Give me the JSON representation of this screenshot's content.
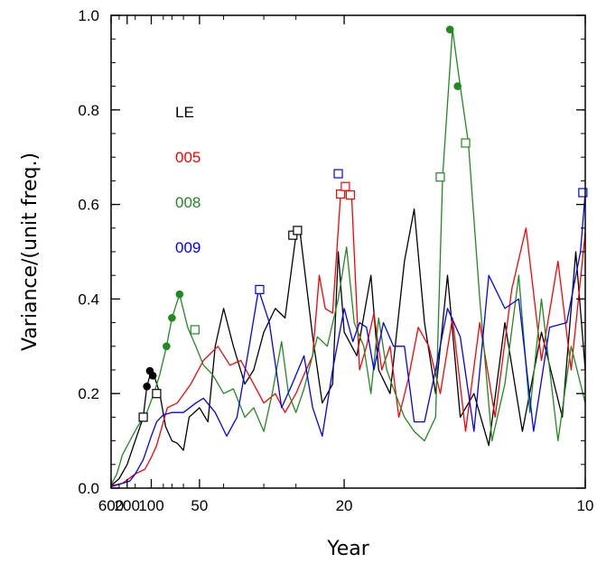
{
  "chart_data": {
    "type": "line",
    "xlabel": "Year",
    "ylabel": "Variance/(unit freq.)",
    "xscale": "reciprocal",
    "xlim": [
      600,
      10
    ],
    "ylim": [
      0,
      1.0
    ],
    "xticks": [
      "600",
      "200",
      "100",
      "50",
      "20",
      "10"
    ],
    "xtick_values": [
      600,
      200,
      100,
      50,
      20,
      10
    ],
    "yticks": [
      "0.0",
      "0.2",
      "0.4",
      "0.6",
      "0.8",
      "1.0"
    ],
    "ytick_values": [
      0,
      0.2,
      0.4,
      0.6,
      0.8,
      1.0
    ],
    "legend": [
      {
        "label": "LE",
        "color": "#000000"
      },
      {
        "label": "005",
        "color": "#ff0000"
      },
      {
        "label": "008",
        "color": "#1f8a1f"
      },
      {
        "label": "009",
        "color": "#0000ff"
      }
    ],
    "series": [
      {
        "name": "LE",
        "color": "#000000",
        "points": [
          [
            600,
            0.005
          ],
          [
            300,
            0.02
          ],
          [
            200,
            0.05
          ],
          [
            150,
            0.1
          ],
          [
            120,
            0.15
          ],
          [
            110,
            0.215
          ],
          [
            100,
            0.248
          ],
          [
            95,
            0.24
          ],
          [
            85,
            0.2
          ],
          [
            77,
            0.13
          ],
          [
            70,
            0.1
          ],
          [
            65,
            0.095
          ],
          [
            60,
            0.08
          ],
          [
            56,
            0.15
          ],
          [
            50,
            0.17
          ],
          [
            46,
            0.14
          ],
          [
            43,
            0.3
          ],
          [
            40,
            0.38
          ],
          [
            37,
            0.3
          ],
          [
            34,
            0.22
          ],
          [
            32,
            0.25
          ],
          [
            30,
            0.33
          ],
          [
            28,
            0.38
          ],
          [
            26.5,
            0.36
          ],
          [
            25,
            0.535
          ],
          [
            24.5,
            0.545
          ],
          [
            23,
            0.32
          ],
          [
            22,
            0.18
          ],
          [
            21,
            0.22
          ],
          [
            20.5,
            0.5
          ],
          [
            20,
            0.33
          ],
          [
            19,
            0.28
          ],
          [
            18,
            0.45
          ],
          [
            17.5,
            0.25
          ],
          [
            16.8,
            0.2
          ],
          [
            16,
            0.48
          ],
          [
            15.5,
            0.59
          ],
          [
            15,
            0.35
          ],
          [
            14.5,
            0.2
          ],
          [
            14,
            0.45
          ],
          [
            13.5,
            0.15
          ],
          [
            13,
            0.2
          ],
          [
            12.5,
            0.09
          ],
          [
            12,
            0.35
          ],
          [
            11.5,
            0.12
          ],
          [
            11,
            0.33
          ],
          [
            10.5,
            0.15
          ],
          [
            10.2,
            0.5
          ],
          [
            10,
            0.25
          ]
        ],
        "markers": [
          [
            120,
            0.15,
            "square"
          ],
          [
            110,
            0.215,
            "dot"
          ],
          [
            103,
            0.248,
            "dot"
          ],
          [
            97,
            0.238,
            "dot"
          ],
          [
            90,
            0.2,
            "square"
          ],
          [
            25.4,
            0.535,
            "square"
          ],
          [
            24.8,
            0.545,
            "square"
          ]
        ]
      },
      {
        "name": "005",
        "color": "#ff0000",
        "points": [
          [
            600,
            0.005
          ],
          [
            250,
            0.01
          ],
          [
            150,
            0.03
          ],
          [
            115,
            0.04
          ],
          [
            100,
            0.065
          ],
          [
            90,
            0.09
          ],
          [
            75,
            0.17
          ],
          [
            65,
            0.18
          ],
          [
            55,
            0.22
          ],
          [
            48,
            0.27
          ],
          [
            42,
            0.3
          ],
          [
            38,
            0.26
          ],
          [
            35,
            0.27
          ],
          [
            32,
            0.22
          ],
          [
            30,
            0.18
          ],
          [
            28,
            0.2
          ],
          [
            26.5,
            0.16
          ],
          [
            25,
            0.2
          ],
          [
            24,
            0.24
          ],
          [
            23,
            0.28
          ],
          [
            22.3,
            0.45
          ],
          [
            21.7,
            0.38
          ],
          [
            21,
            0.37
          ],
          [
            20.3,
            0.62
          ],
          [
            19.8,
            0.635
          ],
          [
            19.4,
            0.62
          ],
          [
            18.8,
            0.25
          ],
          [
            18.3,
            0.3
          ],
          [
            17.8,
            0.37
          ],
          [
            17.3,
            0.25
          ],
          [
            16.8,
            0.3
          ],
          [
            16.3,
            0.15
          ],
          [
            15.8,
            0.23
          ],
          [
            15.3,
            0.34
          ],
          [
            14.8,
            0.3
          ],
          [
            14.3,
            0.2
          ],
          [
            13.8,
            0.36
          ],
          [
            13.3,
            0.12
          ],
          [
            12.8,
            0.35
          ],
          [
            12.3,
            0.15
          ],
          [
            11.8,
            0.42
          ],
          [
            11.4,
            0.55
          ],
          [
            11,
            0.27
          ],
          [
            10.6,
            0.48
          ],
          [
            10.3,
            0.25
          ],
          [
            10,
            0.54
          ]
        ],
        "markers": [
          [
            20.3,
            0.622,
            "square"
          ],
          [
            19.9,
            0.638,
            "square"
          ],
          [
            19.5,
            0.62,
            "square"
          ]
        ]
      },
      {
        "name": "008",
        "color": "#1f8a1f",
        "points": [
          [
            600,
            0.007
          ],
          [
            350,
            0.03
          ],
          [
            250,
            0.07
          ],
          [
            180,
            0.1
          ],
          [
            140,
            0.13
          ],
          [
            110,
            0.16
          ],
          [
            95,
            0.2
          ],
          [
            85,
            0.24
          ],
          [
            76,
            0.3
          ],
          [
            70,
            0.36
          ],
          [
            63,
            0.41
          ],
          [
            57,
            0.34
          ],
          [
            52,
            0.3
          ],
          [
            48,
            0.26
          ],
          [
            44,
            0.24
          ],
          [
            40,
            0.2
          ],
          [
            37,
            0.21
          ],
          [
            34,
            0.15
          ],
          [
            32,
            0.17
          ],
          [
            30,
            0.12
          ],
          [
            28.5,
            0.2
          ],
          [
            27,
            0.31
          ],
          [
            26,
            0.2
          ],
          [
            25,
            0.16
          ],
          [
            24,
            0.21
          ],
          [
            22.5,
            0.32
          ],
          [
            21.5,
            0.3
          ],
          [
            20.5,
            0.4
          ],
          [
            19.8,
            0.51
          ],
          [
            19.2,
            0.35
          ],
          [
            18.5,
            0.3
          ],
          [
            18,
            0.2
          ],
          [
            17.5,
            0.36
          ],
          [
            17,
            0.25
          ],
          [
            16.5,
            0.2
          ],
          [
            16,
            0.15
          ],
          [
            15.5,
            0.12
          ],
          [
            15,
            0.1
          ],
          [
            14.5,
            0.15
          ],
          [
            14.2,
            0.66
          ],
          [
            13.8,
            0.97
          ],
          [
            13.5,
            0.85
          ],
          [
            13.2,
            0.73
          ],
          [
            12.8,
            0.4
          ],
          [
            12.4,
            0.1
          ],
          [
            12,
            0.22
          ],
          [
            11.6,
            0.45
          ],
          [
            11.3,
            0.16
          ],
          [
            11,
            0.4
          ],
          [
            10.6,
            0.1
          ],
          [
            10.3,
            0.3
          ],
          [
            10,
            0.18
          ]
        ],
        "markers": [
          [
            76,
            0.3,
            "dot"
          ],
          [
            70,
            0.36,
            "dot"
          ],
          [
            63,
            0.41,
            "dot"
          ],
          [
            52.5,
            0.335,
            "square"
          ],
          [
            14.3,
            0.658,
            "square"
          ],
          [
            13.9,
            0.97,
            "dot"
          ],
          [
            13.6,
            0.85,
            "dot"
          ],
          [
            13.3,
            0.73,
            "square"
          ]
        ]
      },
      {
        "name": "009",
        "color": "#0000ff",
        "points": [
          [
            600,
            0.003
          ],
          [
            250,
            0.01
          ],
          [
            180,
            0.015
          ],
          [
            150,
            0.03
          ],
          [
            120,
            0.06
          ],
          [
            100,
            0.11
          ],
          [
            90,
            0.14
          ],
          [
            80,
            0.155
          ],
          [
            70,
            0.16
          ],
          [
            60,
            0.16
          ],
          [
            52,
            0.18
          ],
          [
            48,
            0.19
          ],
          [
            43,
            0.16
          ],
          [
            39,
            0.11
          ],
          [
            36,
            0.15
          ],
          [
            33,
            0.3
          ],
          [
            31,
            0.42
          ],
          [
            29,
            0.35
          ],
          [
            27,
            0.17
          ],
          [
            25.5,
            0.22
          ],
          [
            24,
            0.28
          ],
          [
            23,
            0.17
          ],
          [
            22,
            0.11
          ],
          [
            21,
            0.25
          ],
          [
            20,
            0.38
          ],
          [
            19.3,
            0.31
          ],
          [
            18.8,
            0.35
          ],
          [
            18.3,
            0.34
          ],
          [
            17.8,
            0.25
          ],
          [
            17.2,
            0.35
          ],
          [
            16.6,
            0.3
          ],
          [
            16,
            0.3
          ],
          [
            15.5,
            0.14
          ],
          [
            15,
            0.14
          ],
          [
            14.5,
            0.25
          ],
          [
            14,
            0.38
          ],
          [
            13.5,
            0.32
          ],
          [
            13,
            0.12
          ],
          [
            12.5,
            0.45
          ],
          [
            12,
            0.38
          ],
          [
            11.6,
            0.4
          ],
          [
            11.2,
            0.12
          ],
          [
            10.8,
            0.34
          ],
          [
            10.4,
            0.35
          ],
          [
            10.1,
            0.5
          ],
          [
            10,
            0.625
          ]
        ],
        "markers": [
          [
            30.8,
            0.42,
            "square"
          ],
          [
            20.5,
            0.665,
            "square"
          ],
          [
            10.05,
            0.625,
            "square"
          ]
        ]
      }
    ]
  }
}
